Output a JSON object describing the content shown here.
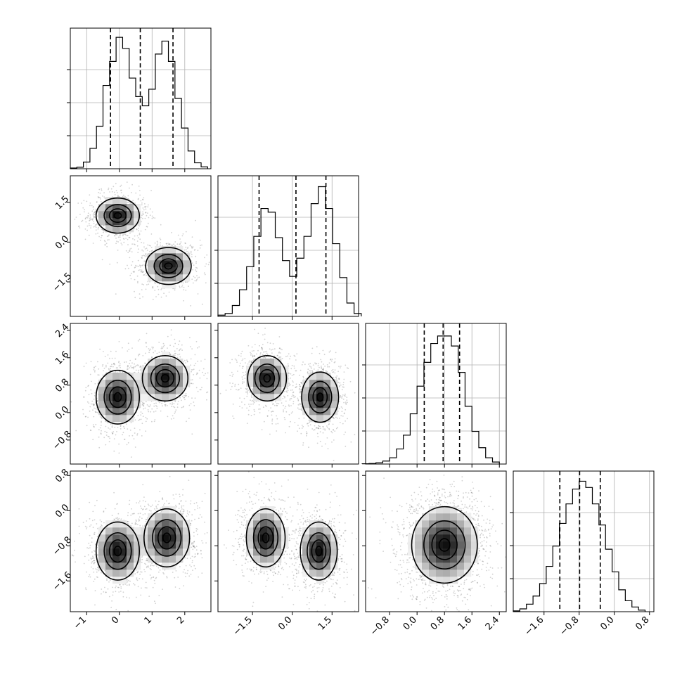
{
  "chart_data": {
    "type": "corner",
    "dimensions": 4,
    "axes": [
      {
        "name": "",
        "range": [
          -1.5,
          2.8
        ],
        "ticks": [
          -1,
          0,
          1,
          2
        ],
        "tick_labels": [
          "−1",
          "0",
          "1",
          "2"
        ]
      },
      {
        "name": "",
        "range": [
          -2.8,
          2.5
        ],
        "ticks": [
          -1.5,
          0.0,
          1.5
        ],
        "tick_labels": [
          "−1.5",
          "0.0",
          "1.5"
        ]
      },
      {
        "name": "",
        "range": [
          -1.5,
          2.6
        ],
        "ticks": [
          -0.8,
          0.0,
          0.8,
          1.6,
          2.4
        ],
        "tick_labels": [
          "−0.8",
          "0.0",
          "0.8",
          "1.6",
          "2.4"
        ]
      },
      {
        "name": "",
        "range": [
          -2.3,
          0.9
        ],
        "ticks": [
          -1.6,
          -0.8,
          0.0,
          0.8
        ],
        "tick_labels": [
          "−1.6",
          "−0.8",
          "0.0",
          "0.8"
        ]
      }
    ],
    "histograms": [
      {
        "var": 0,
        "bins": [
          -1.5,
          -1.3,
          -1.1,
          -0.9,
          -0.7,
          -0.5,
          -0.3,
          -0.1,
          0.1,
          0.3,
          0.5,
          0.7,
          0.9,
          1.1,
          1.3,
          1.5,
          1.7,
          1.9,
          2.1,
          2.3,
          2.5,
          2.7
        ],
        "counts": [
          2,
          4,
          18,
          55,
          115,
          225,
          290,
          355,
          325,
          245,
          195,
          170,
          215,
          310,
          345,
          290,
          190,
          110,
          48,
          16,
          5
        ],
        "ymax": 380,
        "quantiles": [
          -0.27,
          0.64,
          1.64
        ]
      },
      {
        "var": 1,
        "bins": [
          -2.8,
          -2.53,
          -2.26,
          -1.99,
          -1.72,
          -1.45,
          -1.18,
          -0.91,
          -0.64,
          -0.37,
          -0.1,
          0.17,
          0.44,
          0.71,
          0.98,
          1.25,
          1.52,
          1.79,
          2.06,
          2.33,
          2.6
        ],
        "counts": [
          5,
          12,
          45,
          110,
          205,
          330,
          445,
          430,
          325,
          230,
          165,
          240,
          330,
          465,
          535,
          445,
          300,
          160,
          55,
          12
        ],
        "ymax": 580,
        "quantiles": [
          -1.25,
          0.14,
          1.27
        ]
      },
      {
        "var": 2,
        "bins": [
          -1.6,
          -1.4,
          -1.2,
          -1.0,
          -0.8,
          -0.6,
          -0.4,
          -0.2,
          0.0,
          0.2,
          0.4,
          0.6,
          0.8,
          1.0,
          1.2,
          1.4,
          1.6,
          1.8,
          2.0,
          2.2,
          2.4
        ],
        "counts": [
          1,
          2,
          5,
          12,
          25,
          60,
          115,
          200,
          310,
          405,
          480,
          510,
          510,
          470,
          365,
          230,
          130,
          65,
          25,
          8
        ],
        "ymax": 560,
        "quantiles": [
          0.21,
          0.76,
          1.24
        ]
      },
      {
        "var": 3,
        "bins": [
          -2.3,
          -2.15,
          -2.0,
          -1.85,
          -1.7,
          -1.55,
          -1.4,
          -1.25,
          -1.1,
          -0.95,
          -0.8,
          -0.65,
          -0.5,
          -0.35,
          -0.2,
          -0.05,
          0.1,
          0.25,
          0.4,
          0.55,
          0.7
        ],
        "counts": [
          5,
          18,
          48,
          100,
          180,
          290,
          420,
          565,
          690,
          785,
          835,
          795,
          690,
          555,
          400,
          255,
          140,
          70,
          30,
          10
        ],
        "ymax": 900,
        "quantiles": [
          -1.24,
          -0.79,
          -0.32
        ]
      }
    ],
    "pairs": [
      {
        "x_var": 0,
        "y_var": 1,
        "modes": [
          {
            "x": -0.05,
            "y": 1.0,
            "sx": 0.38,
            "sy": 0.38,
            "rho": 0.0
          },
          {
            "x": 1.5,
            "y": -0.9,
            "sx": 0.4,
            "sy": 0.4,
            "rho": 0.0
          }
        ]
      },
      {
        "x_var": 0,
        "y_var": 2,
        "modes": [
          {
            "x": -0.05,
            "y": 0.45,
            "sx": 0.38,
            "sy": 0.45,
            "rho": 0.0
          },
          {
            "x": 1.4,
            "y": 1.0,
            "sx": 0.4,
            "sy": 0.38,
            "rho": 0.0
          }
        ]
      },
      {
        "x_var": 1,
        "y_var": 2,
        "modes": [
          {
            "x": -0.95,
            "y": 1.0,
            "sx": 0.42,
            "sy": 0.38,
            "rho": 0.0
          },
          {
            "x": 1.05,
            "y": 0.45,
            "sx": 0.4,
            "sy": 0.42,
            "rho": 0.0
          }
        ]
      },
      {
        "x_var": 0,
        "y_var": 3,
        "modes": [
          {
            "x": -0.05,
            "y": -0.92,
            "sx": 0.38,
            "sy": 0.38,
            "rho": 0.0
          },
          {
            "x": 1.45,
            "y": -0.62,
            "sx": 0.4,
            "sy": 0.38,
            "rho": 0.0
          }
        ]
      },
      {
        "x_var": 1,
        "y_var": 3,
        "modes": [
          {
            "x": -1.0,
            "y": -0.62,
            "sx": 0.42,
            "sy": 0.38,
            "rho": 0.0
          },
          {
            "x": 1.0,
            "y": -0.92,
            "sx": 0.4,
            "sy": 0.38,
            "rho": 0.0
          }
        ]
      },
      {
        "x_var": 2,
        "y_var": 3,
        "modes": [
          {
            "x": 0.8,
            "y": -0.78,
            "sx": 0.55,
            "sy": 0.5,
            "rho": 0.0
          }
        ]
      }
    ]
  }
}
